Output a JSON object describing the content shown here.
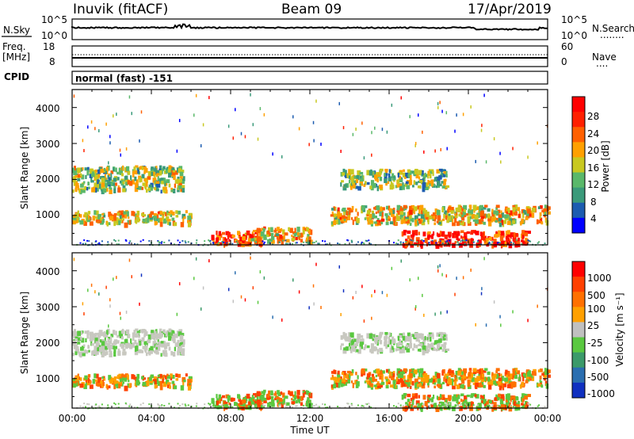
{
  "header": {
    "station": "Inuvik (fitACF)",
    "beam": "Beam 09",
    "date": "17/Apr/2019"
  },
  "noise_panel": {
    "left_label": "N.Sky",
    "left_ticks": [
      "10^5",
      "10^0"
    ],
    "right_ticks": [
      "10^5",
      "10^0"
    ],
    "right_label": "N.Search",
    "right_dots": "........"
  },
  "freq_panel": {
    "left_label_1": "Freq.",
    "left_label_2": "[MHz]",
    "left_ticks": [
      "18",
      "8"
    ],
    "right_ticks": [
      "60",
      "0"
    ],
    "right_label": "Nave",
    "right_dots": "...."
  },
  "cpid": {
    "label": "CPID",
    "mode": "normal (fast) -151"
  },
  "colors": {
    "power_scale": [
      "#0000ff",
      "#1c5cb0",
      "#3a9a7a",
      "#5ab86a",
      "#c8c820",
      "#ffa000",
      "#ff6000",
      "#ff2000",
      "#ff0000"
    ],
    "velocity_scale": [
      "#1030c0",
      "#2a6eb0",
      "#3b9a6a",
      "#5ac840",
      "#c0c0c0",
      "#ffa000",
      "#ff7000",
      "#ff4000",
      "#ff0000"
    ],
    "scatter_grey": "#c8c8c0"
  },
  "chart_data": [
    {
      "type": "heatmap",
      "panel": "power",
      "ylabel": "Slant Range [km]",
      "xlabel": "Time UT",
      "y_ticks": [
        "4000",
        "3000",
        "2000",
        "1000"
      ],
      "x_ticks": [
        "00:00",
        "04:00",
        "08:00",
        "12:00",
        "16:00",
        "20:00",
        "00:00"
      ],
      "ylim": [
        180,
        4500
      ],
      "colorbar": {
        "label": "Power [dB]",
        "ticks": [
          "28",
          "24",
          "20",
          "16",
          "12",
          "8",
          "4"
        ]
      },
      "bands": [
        {
          "t": [
            0.0,
            5.6
          ],
          "range": [
            1700,
            2400
          ],
          "level": 0.45
        },
        {
          "t": [
            0.0,
            6.0
          ],
          "range": [
            800,
            1150
          ],
          "level": 0.55
        },
        {
          "t": [
            7.0,
            9.5
          ],
          "range": [
            200,
            600
          ],
          "level": 0.8
        },
        {
          "t": [
            9.0,
            12.0
          ],
          "range": [
            300,
            700
          ],
          "level": 0.55
        },
        {
          "t": [
            13.5,
            19.0
          ],
          "range": [
            1800,
            2300
          ],
          "level": 0.4
        },
        {
          "t": [
            13.0,
            24.0
          ],
          "range": [
            800,
            1300
          ],
          "level": 0.55
        },
        {
          "t": [
            16.5,
            23.0
          ],
          "range": [
            200,
            600
          ],
          "level": 0.85
        }
      ]
    },
    {
      "type": "heatmap",
      "panel": "velocity",
      "ylabel": "Slant Range [km]",
      "xlabel": "Time UT",
      "y_ticks": [
        "4000",
        "3000",
        "2000",
        "1000"
      ],
      "x_ticks": [
        "00:00",
        "04:00",
        "08:00",
        "12:00",
        "16:00",
        "20:00",
        "00:00"
      ],
      "ylim": [
        180,
        4500
      ],
      "colorbar": {
        "label": "Velocity [m s⁻¹]",
        "ticks": [
          "1000",
          "500",
          "100",
          "25",
          "-25",
          "-100",
          "-500",
          "-1000"
        ]
      }
    }
  ]
}
